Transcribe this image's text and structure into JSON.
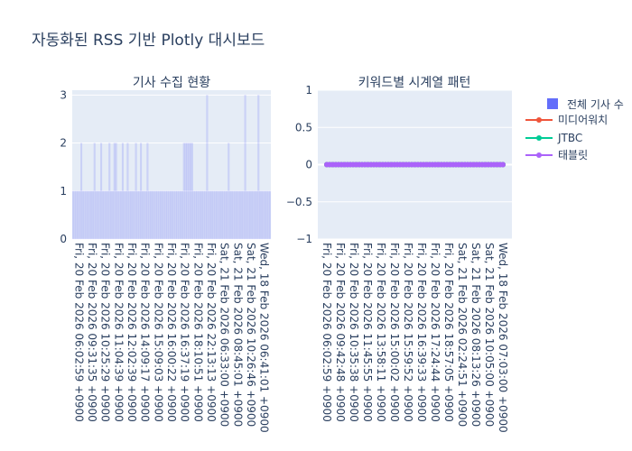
{
  "title": "자동화된 RSS 기반 Plotly 대시보드",
  "chart_data": [
    {
      "type": "bar",
      "title": "기사 수집 현황",
      "ylim": [
        0,
        3.1
      ],
      "y_ticks": [
        "0",
        "1",
        "2",
        "3"
      ],
      "x_ticks": [
        "Fri, 20 Feb 2026 06:02:59 +0900",
        "Fri, 20 Feb 2026 09:31:35 +0900",
        "Fri, 20 Feb 2026 10:25:29 +0900",
        "Fri, 20 Feb 2026 11:04:39 +0900",
        "Fri, 20 Feb 2026 12:02:39 +0900",
        "Fri, 20 Feb 2026 14:09:17 +0900",
        "Fri, 20 Feb 2026 15:09:03 +0900",
        "Fri, 20 Feb 2026 16:00:22 +0900",
        "Fri, 20 Feb 2026 16:37:19 +0900",
        "Fri, 20 Feb 2026 18:10:51 +0900",
        "Fri, 20 Feb 2026 22:13:13 +0900",
        "Sat, 21 Feb 2026 06:33:00 +0900",
        "Sat, 21 Feb 2026 08:45:01 +0900",
        "Sat, 21 Feb 2026 10:26:46 +0900",
        "Wed, 18 Feb 2026 06:41:01 +0900"
      ],
      "series": [
        {
          "name": "전체 기사 수",
          "color": "#636efa",
          "values": [
            1,
            1,
            1,
            1,
            1,
            2,
            1,
            1,
            1,
            1,
            1,
            1,
            1,
            2,
            1,
            1,
            1,
            2,
            1,
            1,
            1,
            1,
            2,
            1,
            1,
            2,
            2,
            1,
            1,
            1,
            2,
            1,
            1,
            2,
            1,
            1,
            1,
            1,
            2,
            1,
            1,
            2,
            1,
            1,
            1,
            2,
            1,
            1,
            1,
            1,
            1,
            1,
            1,
            1,
            1,
            1,
            1,
            1,
            1,
            1,
            1,
            1,
            1,
            1,
            1,
            1,
            1,
            2,
            2,
            2,
            2,
            2,
            2,
            1,
            1,
            1,
            1,
            1,
            1,
            1,
            1,
            3,
            1,
            1,
            1,
            1,
            1,
            1,
            1,
            1,
            1,
            1,
            1,
            1,
            2,
            1,
            1,
            1,
            1,
            1,
            1,
            1,
            1,
            1,
            3,
            1,
            1,
            1,
            1,
            1,
            1,
            1,
            3,
            1,
            1,
            1,
            1,
            1,
            1,
            1
          ]
        }
      ]
    },
    {
      "type": "line",
      "title": "키워드별 시계열 패턴",
      "ylim": [
        -1,
        1
      ],
      "y_ticks": [
        "−1",
        "−0.5",
        "0",
        "0.5",
        "1"
      ],
      "x_ticks": [
        "Fri, 20 Feb 2026 06:02:59 +0900",
        "Fri, 20 Feb 2026 09:42:48 +0900",
        "Fri, 20 Feb 2026 10:35:38 +0900",
        "Fri, 20 Feb 2026 11:45:55 +0900",
        "Fri, 20 Feb 2026 13:58:11 +0900",
        "Fri, 20 Feb 2026 15:00:02 +0900",
        "Fri, 20 Feb 2026 15:59:52 +0900",
        "Fri, 20 Feb 2026 16:39:33 +0900",
        "Fri, 20 Feb 2026 17:24:44 +0900",
        "Fri, 20 Feb 2026 18:57:05 +0900",
        "Sat, 21 Feb 2026 02:24:51 +0900",
        "Sat, 21 Feb 2026 08:13:26 +0900",
        "Sat, 21 Feb 2026 10:05:00 +0900",
        "Wed, 18 Feb 2026 07:03:00 +0900"
      ],
      "n_points": 61,
      "series": [
        {
          "name": "미디어워치",
          "color": "#ef553b",
          "value": 0
        },
        {
          "name": "JTBC",
          "color": "#00cc96",
          "value": 0
        },
        {
          "name": "태블릿",
          "color": "#ab63fa",
          "value": 0
        }
      ]
    }
  ],
  "legend": {
    "items": [
      {
        "label": "전체 기사 수",
        "kind": "bar",
        "color": "#636efa"
      },
      {
        "label": "미디어워치",
        "kind": "line",
        "color": "#ef553b"
      },
      {
        "label": "JTBC",
        "kind": "line",
        "color": "#00cc96"
      },
      {
        "label": "태블릿",
        "kind": "line",
        "color": "#ab63fa"
      }
    ]
  }
}
